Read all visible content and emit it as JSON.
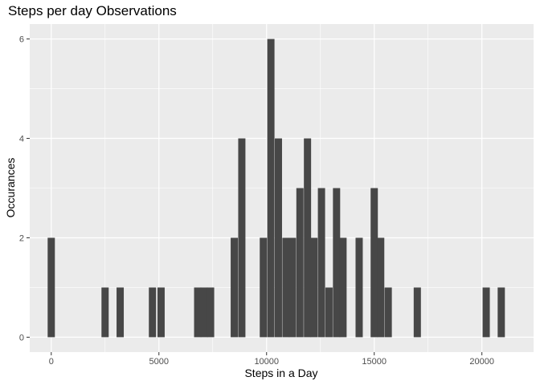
{
  "chart_data": {
    "type": "bar",
    "title": "Steps per day Observations",
    "xlabel": "Steps in a Day",
    "ylabel": "Occurances",
    "xlim": [
      -1000,
      22400
    ],
    "ylim": [
      -0.3,
      6.3
    ],
    "bin_width": 335,
    "x_ticks": [
      0,
      5000,
      10000,
      15000,
      20000
    ],
    "x_tick_labels": [
      "0",
      "5000",
      "10000",
      "15000",
      "20000"
    ],
    "y_ticks": [
      0,
      2,
      4,
      6
    ],
    "y_tick_labels": [
      "0",
      "2",
      "4",
      "6"
    ],
    "grid": true,
    "bar_color": "#474747",
    "panel_color": "#ebebeb",
    "bins": [
      {
        "x": 0,
        "count": 2
      },
      {
        "x": 2500,
        "count": 1
      },
      {
        "x": 3200,
        "count": 1
      },
      {
        "x": 4700,
        "count": 1
      },
      {
        "x": 5100,
        "count": 1
      },
      {
        "x": 6800,
        "count": 1
      },
      {
        "x": 7100,
        "count": 1
      },
      {
        "x": 7400,
        "count": 1
      },
      {
        "x": 8500,
        "count": 2
      },
      {
        "x": 8850,
        "count": 4
      },
      {
        "x": 9850,
        "count": 2
      },
      {
        "x": 10200,
        "count": 6
      },
      {
        "x": 10550,
        "count": 4
      },
      {
        "x": 10900,
        "count": 2
      },
      {
        "x": 11200,
        "count": 2
      },
      {
        "x": 11550,
        "count": 3
      },
      {
        "x": 11900,
        "count": 4
      },
      {
        "x": 12200,
        "count": 2
      },
      {
        "x": 12550,
        "count": 3
      },
      {
        "x": 12900,
        "count": 1
      },
      {
        "x": 13250,
        "count": 3
      },
      {
        "x": 13550,
        "count": 2
      },
      {
        "x": 14300,
        "count": 2
      },
      {
        "x": 15000,
        "count": 3
      },
      {
        "x": 15300,
        "count": 2
      },
      {
        "x": 15650,
        "count": 1
      },
      {
        "x": 17000,
        "count": 1
      },
      {
        "x": 20200,
        "count": 1
      },
      {
        "x": 20900,
        "count": 1
      }
    ]
  }
}
